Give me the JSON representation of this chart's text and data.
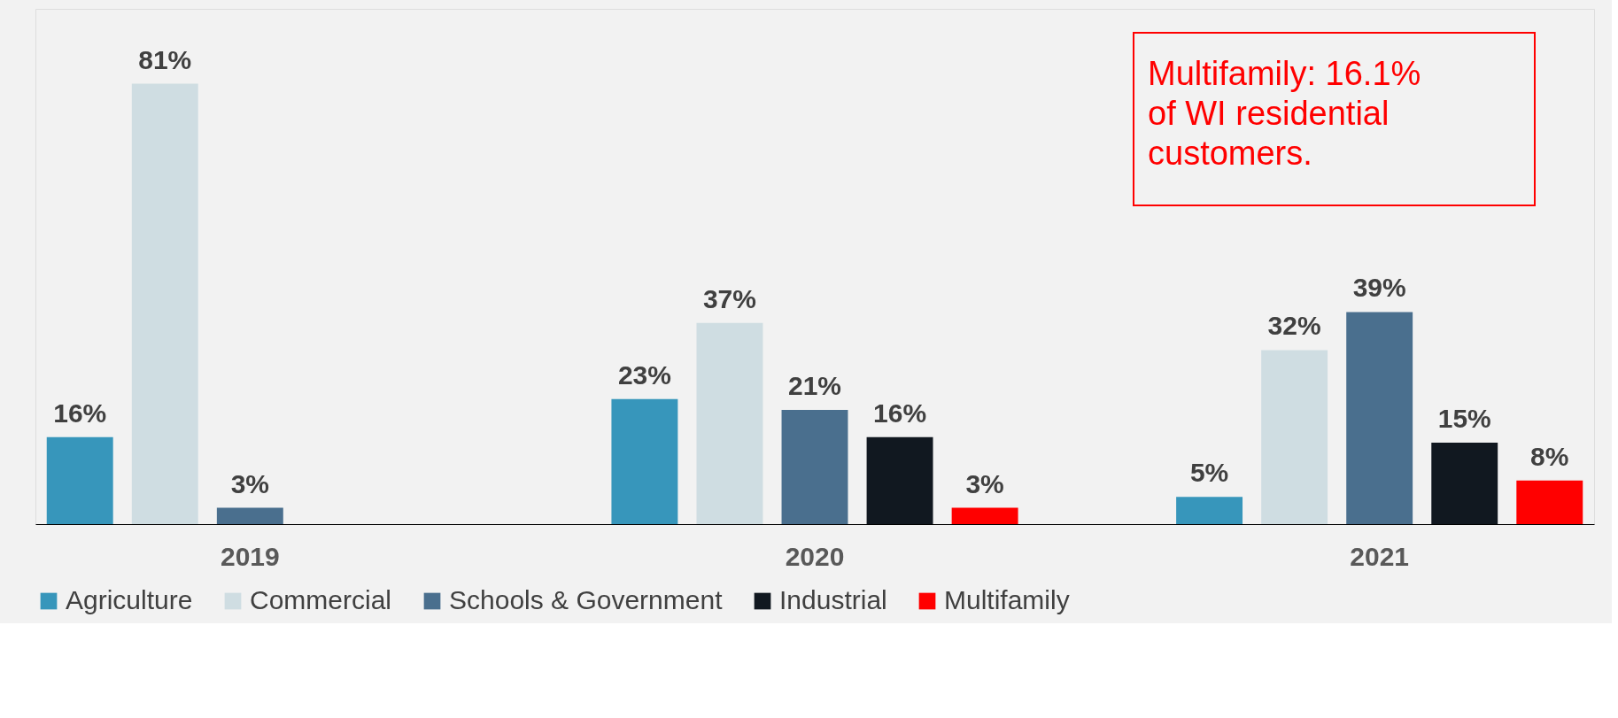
{
  "chart_data": {
    "type": "bar",
    "categories": [
      "2019",
      "2020",
      "2021"
    ],
    "series": [
      {
        "name": "Agriculture",
        "color": "#3796bb",
        "values": [
          16,
          23,
          5
        ],
        "value_labels": [
          "16%",
          "23%",
          "5%"
        ]
      },
      {
        "name": "Commercial",
        "color": "#cfdde2",
        "values": [
          81,
          37,
          32
        ],
        "value_labels": [
          "81%",
          "37%",
          "32%"
        ]
      },
      {
        "name": "Schools & Government",
        "color": "#4a6f8e",
        "values": [
          3,
          21,
          39
        ],
        "value_labels": [
          "3%",
          "21%",
          "39%"
        ]
      },
      {
        "name": "Industrial",
        "color": "#111820",
        "values": [
          null,
          16,
          15
        ],
        "value_labels": [
          null,
          "16%",
          "15%"
        ]
      },
      {
        "name": "Multifamily",
        "color": "#ff0000",
        "values": [
          null,
          3,
          8
        ],
        "value_labels": [
          null,
          "3%",
          "8%"
        ]
      }
    ],
    "annotations": [
      "Multifamily: 16.1% of WI residential customers."
    ],
    "legend": "bottom",
    "grid": false
  }
}
